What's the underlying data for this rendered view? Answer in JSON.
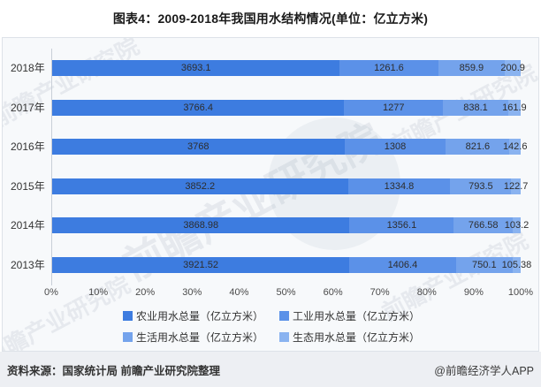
{
  "title": "图表4：2009-2018年我国用水结构情况(单位：亿立方米)",
  "chart_data": {
    "type": "bar",
    "orientation": "horizontal",
    "stacked": "percent",
    "title": "图表4：2009-2018年我国用水结构情况(单位：亿立方米)",
    "unit": "亿立方米",
    "categories": [
      "2018年",
      "2017年",
      "2016年",
      "2015年",
      "2014年",
      "2013年"
    ],
    "series": [
      {
        "name": "农业用水总量（亿立方米）",
        "color": "#3d7ce0",
        "values": [
          3693.1,
          3766.4,
          3768,
          3852.2,
          3868.98,
          3921.52
        ]
      },
      {
        "name": "工业用水总量（亿立方米）",
        "color": "#5b91e8",
        "values": [
          1261.6,
          1277,
          1308,
          1334.8,
          1356.1,
          1406.4
        ]
      },
      {
        "name": "生活用水总量（亿立方米）",
        "color": "#74a3ec",
        "values": [
          859.9,
          838.1,
          821.6,
          793.5,
          766.58,
          750.1
        ]
      },
      {
        "name": "生态用水总量（亿立方米）",
        "color": "#8ab3f0",
        "values": [
          200.9,
          161.9,
          142.6,
          122.7,
          103.2,
          105.38
        ]
      }
    ],
    "x_ticks": [
      "0%",
      "10%",
      "20%",
      "30%",
      "40%",
      "50%",
      "60%",
      "70%",
      "80%",
      "90%",
      "100%"
    ],
    "xlim": [
      0,
      100
    ],
    "grid": false,
    "legend_position": "bottom",
    "legend_rows": [
      [
        0,
        1
      ],
      [
        2,
        3
      ]
    ]
  },
  "footer": {
    "source": "资料来源：国家统计局 前瞻产业研究院整理",
    "credit": "@前瞻经济学人APP"
  },
  "watermark": {
    "text": "前瞻产业研究院"
  }
}
